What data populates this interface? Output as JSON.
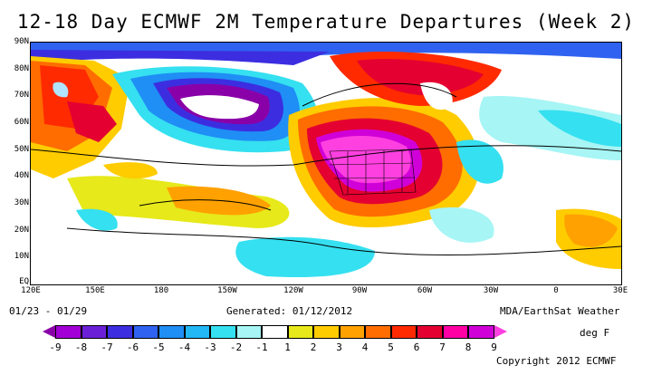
{
  "title": "12-18 Day ECMWF 2M Temperature Departures (Week 2)",
  "date_range": "01/23 - 01/29",
  "generated": "Generated: 01/12/2012",
  "source": "MDA/EarthSat Weather",
  "units": "deg F",
  "copyright": "Copyright 2012 ECMWF",
  "lat_labels": [
    "90N",
    "80N",
    "70N",
    "60N",
    "50N",
    "40N",
    "30N",
    "20N",
    "10N",
    "EQ"
  ],
  "lon_labels": [
    "120E",
    "150E",
    "180",
    "150W",
    "120W",
    "90W",
    "60W",
    "30W",
    "0",
    "30E"
  ],
  "colorbar": {
    "labels": [
      "-9",
      "-8",
      "-7",
      "-6",
      "-5",
      "-4",
      "-3",
      "-2",
      "-1",
      "1",
      "2",
      "3",
      "4",
      "5",
      "6",
      "7",
      "8",
      "9"
    ],
    "colors": [
      "#8a00a8",
      "#a200d6",
      "#6b20d8",
      "#3c2ee0",
      "#2f62f0",
      "#1f8ef5",
      "#22b8f5",
      "#35e0f0",
      "#a7f5f5",
      "#ffffff",
      "#e7e91a",
      "#ffcc00",
      "#ffa100",
      "#ff6d00",
      "#ff2a00",
      "#e40030",
      "#ff00a5",
      "#d000d8",
      "#ff40e0"
    ]
  }
}
